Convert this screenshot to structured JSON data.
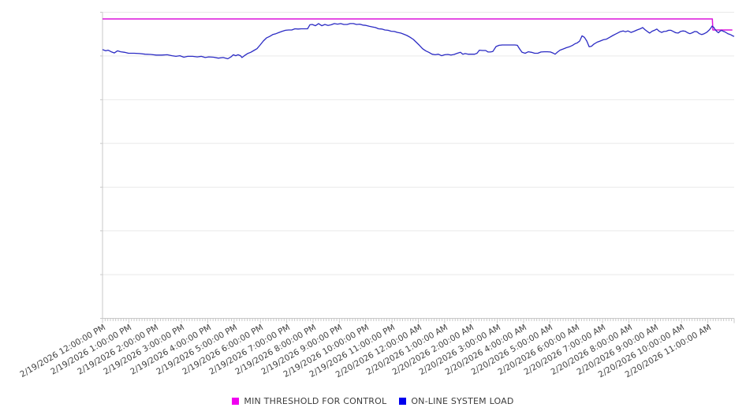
{
  "page": {
    "background": "#ffffff",
    "grid_color": "#e9e9e9",
    "axis_color": "#c8c8c8",
    "label_color": "#404040"
  },
  "legend": {
    "items": [
      {
        "label": "MIN THRESHOLD FOR CONTROL",
        "color": "#F000F0"
      },
      {
        "label": "ON-LINE SYSTEM LOAD",
        "color": "#0000EE"
      }
    ]
  },
  "chart_data": {
    "type": "line",
    "title": "",
    "xlabel": "",
    "ylabel": "",
    "x_axis": {
      "unit": "hours from 2/19/2026 12:00:00 PM",
      "range_hours": [
        0,
        24
      ],
      "minor_ticks_per_hour": 10,
      "tick_labels": [
        "2/19/2026 12:00:00 PM",
        "2/19/2026 1:00:00 PM",
        "2/19/2026 2:00:00 PM",
        "2/19/2026 3:00:00 PM",
        "2/19/2026 4:00:00 PM",
        "2/19/2026 5:00:00 PM",
        "2/19/2026 6:00:00 PM",
        "2/19/2026 7:00:00 PM",
        "2/19/2026 8:00:00 PM",
        "2/19/2026 9:00:00 PM",
        "2/19/2026 10:00:00 PM",
        "2/19/2026 11:00:00 PM",
        "2/20/2026 12:00:00 AM",
        "2/20/2026 1:00:00 AM",
        "2/20/2026 2:00:00 AM",
        "2/20/2026 3:00:00 AM",
        "2/20/2026 4:00:00 AM",
        "2/20/2026 5:00:00 AM",
        "2/20/2026 6:00:00 AM",
        "2/20/2026 7:00:00 AM",
        "2/20/2026 8:00:00 AM",
        "2/20/2026 9:00:00 AM",
        "2/20/2026 10:00:00 AM",
        "2/20/2026 11:00:00 AM"
      ],
      "label_rotation_deg": -30
    },
    "y_axis": {
      "tick_labels_visible": false,
      "scale_note": "unlabeled axis; values below are percent of plot height (0 = bottom gridline, 100 = top gridline)",
      "gridlines": 8,
      "ylim": [
        0,
        100
      ]
    },
    "layout": {
      "grid": "horizontal",
      "legend_position": "bottom-center"
    },
    "series": [
      {
        "name": "MIN THRESHOLD FOR CONTROL",
        "color": "#DC14DC",
        "points": [
          [
            0,
            97.8
          ],
          [
            23.17,
            97.8
          ],
          [
            23.19,
            94.2
          ],
          [
            23.93,
            94.2
          ]
        ]
      },
      {
        "name": "ON-LINE SYSTEM LOAD",
        "color": "#2B2BC4",
        "points": [
          [
            0,
            87.8
          ],
          [
            0.12,
            87.4
          ],
          [
            0.21,
            87.6
          ],
          [
            0.33,
            87.1
          ],
          [
            0.45,
            86.7
          ],
          [
            0.57,
            87.4
          ],
          [
            0.69,
            87.1
          ],
          [
            0.84,
            86.9
          ],
          [
            0.99,
            86.6
          ],
          [
            1.2,
            86.6
          ],
          [
            1.41,
            86.5
          ],
          [
            1.62,
            86.3
          ],
          [
            1.83,
            86.2
          ],
          [
            2.04,
            86.0
          ],
          [
            2.25,
            86.0
          ],
          [
            2.46,
            86.1
          ],
          [
            2.64,
            85.8
          ],
          [
            2.79,
            85.6
          ],
          [
            2.94,
            85.8
          ],
          [
            3.09,
            85.3
          ],
          [
            3.24,
            85.6
          ],
          [
            3.42,
            85.6
          ],
          [
            3.6,
            85.4
          ],
          [
            3.75,
            85.6
          ],
          [
            3.9,
            85.2
          ],
          [
            4.04,
            85.4
          ],
          [
            4.22,
            85.3
          ],
          [
            4.4,
            85.0
          ],
          [
            4.58,
            85.2
          ],
          [
            4.76,
            84.8
          ],
          [
            4.88,
            85.4
          ],
          [
            4.97,
            86.1
          ],
          [
            5.06,
            85.8
          ],
          [
            5.15,
            86.1
          ],
          [
            5.24,
            85.8
          ],
          [
            5.3,
            85.2
          ],
          [
            5.39,
            85.8
          ],
          [
            5.51,
            86.5
          ],
          [
            5.63,
            86.9
          ],
          [
            5.75,
            87.5
          ],
          [
            5.87,
            88.1
          ],
          [
            5.99,
            89.3
          ],
          [
            6.11,
            90.6
          ],
          [
            6.23,
            91.6
          ],
          [
            6.35,
            92.1
          ],
          [
            6.47,
            92.7
          ],
          [
            6.59,
            93.0
          ],
          [
            6.71,
            93.4
          ],
          [
            6.83,
            93.8
          ],
          [
            6.95,
            94.1
          ],
          [
            7.07,
            94.2
          ],
          [
            7.19,
            94.2
          ],
          [
            7.31,
            94.6
          ],
          [
            7.43,
            94.5
          ],
          [
            7.55,
            94.6
          ],
          [
            7.67,
            94.6
          ],
          [
            7.79,
            94.6
          ],
          [
            7.88,
            95.9
          ],
          [
            7.97,
            96.0
          ],
          [
            8.09,
            95.6
          ],
          [
            8.21,
            96.3
          ],
          [
            8.33,
            95.6
          ],
          [
            8.45,
            96.0
          ],
          [
            8.57,
            95.7
          ],
          [
            8.69,
            95.9
          ],
          [
            8.81,
            96.3
          ],
          [
            8.93,
            96.1
          ],
          [
            9.05,
            96.3
          ],
          [
            9.17,
            96.0
          ],
          [
            9.29,
            96.0
          ],
          [
            9.41,
            96.3
          ],
          [
            9.53,
            96.3
          ],
          [
            9.65,
            96.0
          ],
          [
            9.77,
            96.1
          ],
          [
            9.89,
            95.8
          ],
          [
            10.01,
            95.7
          ],
          [
            10.13,
            95.4
          ],
          [
            10.25,
            95.2
          ],
          [
            10.37,
            95.0
          ],
          [
            10.49,
            94.6
          ],
          [
            10.61,
            94.5
          ],
          [
            10.73,
            94.2
          ],
          [
            10.85,
            94.1
          ],
          [
            10.97,
            93.8
          ],
          [
            11.09,
            93.7
          ],
          [
            11.21,
            93.4
          ],
          [
            11.33,
            93.2
          ],
          [
            11.45,
            92.8
          ],
          [
            11.57,
            92.4
          ],
          [
            11.69,
            91.8
          ],
          [
            11.81,
            91.1
          ],
          [
            11.92,
            90.2
          ],
          [
            12.04,
            89.2
          ],
          [
            12.16,
            88.1
          ],
          [
            12.28,
            87.4
          ],
          [
            12.4,
            86.9
          ],
          [
            12.52,
            86.3
          ],
          [
            12.64,
            86.1
          ],
          [
            12.76,
            86.3
          ],
          [
            12.88,
            85.8
          ],
          [
            13.0,
            86.1
          ],
          [
            13.12,
            86.2
          ],
          [
            13.24,
            86.0
          ],
          [
            13.36,
            86.2
          ],
          [
            13.48,
            86.6
          ],
          [
            13.6,
            86.9
          ],
          [
            13.69,
            86.3
          ],
          [
            13.78,
            86.5
          ],
          [
            13.9,
            86.3
          ],
          [
            14.02,
            86.3
          ],
          [
            14.14,
            86.3
          ],
          [
            14.23,
            86.6
          ],
          [
            14.32,
            87.6
          ],
          [
            14.44,
            87.5
          ],
          [
            14.56,
            87.5
          ],
          [
            14.65,
            87.0
          ],
          [
            14.74,
            87.0
          ],
          [
            14.83,
            87.2
          ],
          [
            14.95,
            88.8
          ],
          [
            15.07,
            89.2
          ],
          [
            15.19,
            89.3
          ],
          [
            15.31,
            89.3
          ],
          [
            15.43,
            89.3
          ],
          [
            15.55,
            89.3
          ],
          [
            15.67,
            89.3
          ],
          [
            15.76,
            89.2
          ],
          [
            15.85,
            88.0
          ],
          [
            15.94,
            86.9
          ],
          [
            16.06,
            86.6
          ],
          [
            16.18,
            87.1
          ],
          [
            16.3,
            86.9
          ],
          [
            16.42,
            86.6
          ],
          [
            16.54,
            86.6
          ],
          [
            16.66,
            87.0
          ],
          [
            16.78,
            87.1
          ],
          [
            16.9,
            87.1
          ],
          [
            17.02,
            87.0
          ],
          [
            17.11,
            86.7
          ],
          [
            17.2,
            86.3
          ],
          [
            17.29,
            87.0
          ],
          [
            17.38,
            87.6
          ],
          [
            17.5,
            88.0
          ],
          [
            17.62,
            88.4
          ],
          [
            17.74,
            88.7
          ],
          [
            17.86,
            89.2
          ],
          [
            17.95,
            89.7
          ],
          [
            18.04,
            90.0
          ],
          [
            18.13,
            90.6
          ],
          [
            18.22,
            92.3
          ],
          [
            18.31,
            91.8
          ],
          [
            18.4,
            90.6
          ],
          [
            18.49,
            88.7
          ],
          [
            18.58,
            88.9
          ],
          [
            18.67,
            89.6
          ],
          [
            18.79,
            90.2
          ],
          [
            18.91,
            90.6
          ],
          [
            19.03,
            91.0
          ],
          [
            19.15,
            91.2
          ],
          [
            19.27,
            91.8
          ],
          [
            19.39,
            92.4
          ],
          [
            19.48,
            92.8
          ],
          [
            19.57,
            93.2
          ],
          [
            19.66,
            93.6
          ],
          [
            19.78,
            93.9
          ],
          [
            19.87,
            93.6
          ],
          [
            19.96,
            93.9
          ],
          [
            20.08,
            93.4
          ],
          [
            20.2,
            93.8
          ],
          [
            20.31,
            94.2
          ],
          [
            20.43,
            94.6
          ],
          [
            20.52,
            95.0
          ],
          [
            20.61,
            94.3
          ],
          [
            20.7,
            93.7
          ],
          [
            20.79,
            93.2
          ],
          [
            20.88,
            93.8
          ],
          [
            20.97,
            94.1
          ],
          [
            21.06,
            94.5
          ],
          [
            21.15,
            93.8
          ],
          [
            21.24,
            93.4
          ],
          [
            21.33,
            93.7
          ],
          [
            21.42,
            93.8
          ],
          [
            21.51,
            94.1
          ],
          [
            21.6,
            94.1
          ],
          [
            21.69,
            93.7
          ],
          [
            21.78,
            93.3
          ],
          [
            21.87,
            93.2
          ],
          [
            21.96,
            93.7
          ],
          [
            22.05,
            93.9
          ],
          [
            22.14,
            93.8
          ],
          [
            22.23,
            93.3
          ],
          [
            22.32,
            93.0
          ],
          [
            22.41,
            93.3
          ],
          [
            22.5,
            93.7
          ],
          [
            22.59,
            93.6
          ],
          [
            22.68,
            93.0
          ],
          [
            22.77,
            92.7
          ],
          [
            22.86,
            93.0
          ],
          [
            22.95,
            93.4
          ],
          [
            23.04,
            94.1
          ],
          [
            23.1,
            94.7
          ],
          [
            23.16,
            95.5
          ],
          [
            23.22,
            95.1
          ],
          [
            23.28,
            94.3
          ],
          [
            23.34,
            93.7
          ],
          [
            23.4,
            93.3
          ],
          [
            23.46,
            93.8
          ],
          [
            23.52,
            94.1
          ],
          [
            23.58,
            93.8
          ],
          [
            23.64,
            93.6
          ],
          [
            23.7,
            93.3
          ],
          [
            23.76,
            93.0
          ],
          [
            23.82,
            92.8
          ],
          [
            23.88,
            92.6
          ],
          [
            23.94,
            92.3
          ],
          [
            24.0,
            92.1
          ]
        ]
      }
    ]
  }
}
